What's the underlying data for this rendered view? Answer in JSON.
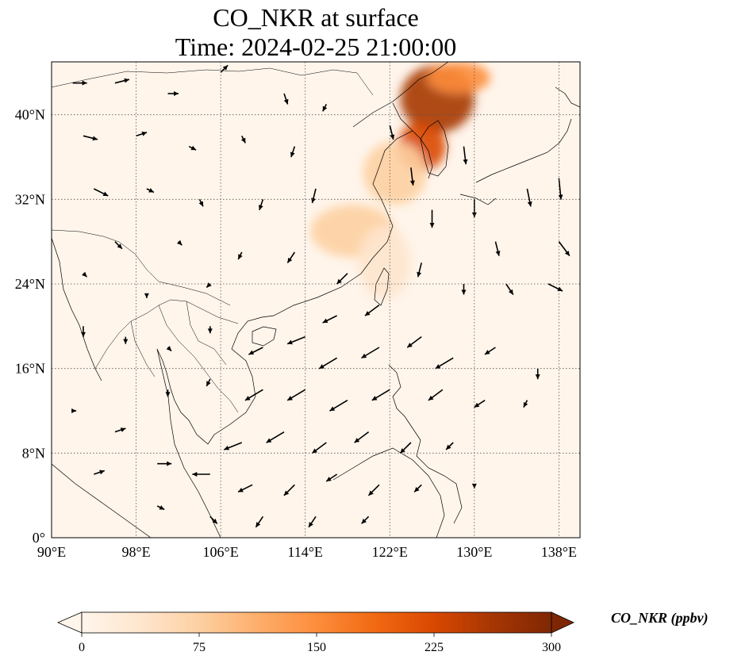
{
  "title_line1": "CO_NKR at surface",
  "title_line2": "Time: 2024-02-25 21:00:00",
  "map": {
    "lon_range": [
      90,
      140
    ],
    "lat_range": [
      0,
      45
    ],
    "lon_ticks": [
      {
        "value": 90,
        "label": "90°E"
      },
      {
        "value": 98,
        "label": "98°E"
      },
      {
        "value": 106,
        "label": "106°E"
      },
      {
        "value": 114,
        "label": "114°E"
      },
      {
        "value": 122,
        "label": "122°E"
      },
      {
        "value": 130,
        "label": "130°E"
      },
      {
        "value": 138,
        "label": "138°E"
      }
    ],
    "lat_ticks": [
      {
        "value": 0,
        "label": "0°"
      },
      {
        "value": 8,
        "label": "8°N"
      },
      {
        "value": 16,
        "label": "16°N"
      },
      {
        "value": 24,
        "label": "24°N"
      },
      {
        "value": 32,
        "label": "32°N"
      },
      {
        "value": 40,
        "label": "40°N"
      }
    ],
    "gridlines": "dotted",
    "background_color": "#fff5eb",
    "plumes": [
      {
        "name": "korea-north-china-plume",
        "lon": 126.5,
        "lat": 41.5,
        "rlon": 3.5,
        "rlat": 3.2,
        "value": 280
      },
      {
        "name": "korea-plume",
        "lon": 125.0,
        "lat": 37.0,
        "rlon": 2.3,
        "rlat": 2.3,
        "value": 230
      },
      {
        "name": "northeast-plume",
        "lon": 128.5,
        "lat": 43.5,
        "rlon": 3.0,
        "rlat": 1.5,
        "value": 160
      },
      {
        "name": "yellow-sea-plume",
        "lon": 122.5,
        "lat": 34.5,
        "rlon": 3.0,
        "rlat": 3.0,
        "value": 70
      },
      {
        "name": "east-china-plume",
        "lon": 118.5,
        "lat": 29.0,
        "rlon": 4.0,
        "rlat": 2.5,
        "value": 60
      },
      {
        "name": "taiwan-plume",
        "lon": 121.5,
        "lat": 26.0,
        "rlon": 2.5,
        "rlat": 3.5,
        "value": 40
      }
    ],
    "wind_vectors": [
      {
        "lon": 92,
        "lat": 43,
        "u": 2,
        "v": 0
      },
      {
        "lon": 96,
        "lat": 43,
        "u": 2,
        "v": 0.5
      },
      {
        "lon": 101,
        "lat": 42,
        "u": 1.5,
        "v": 0
      },
      {
        "lon": 106,
        "lat": 44,
        "u": 1,
        "v": 1
      },
      {
        "lon": 112,
        "lat": 42,
        "u": 0.5,
        "v": -1.5
      },
      {
        "lon": 116,
        "lat": 41,
        "u": -0.5,
        "v": -1
      },
      {
        "lon": 93,
        "lat": 38,
        "u": 2,
        "v": -0.5
      },
      {
        "lon": 98,
        "lat": 38,
        "u": 1.5,
        "v": 0.5
      },
      {
        "lon": 103,
        "lat": 37,
        "u": 1,
        "v": -0.5
      },
      {
        "lon": 108,
        "lat": 38,
        "u": 0.5,
        "v": -1
      },
      {
        "lon": 113,
        "lat": 37,
        "u": -0.5,
        "v": -1.5
      },
      {
        "lon": 94,
        "lat": 33,
        "u": 2,
        "v": -1
      },
      {
        "lon": 99,
        "lat": 33,
        "u": 1,
        "v": -0.5
      },
      {
        "lon": 104,
        "lat": 32,
        "u": 0.5,
        "v": -1
      },
      {
        "lon": 110,
        "lat": 32,
        "u": -0.5,
        "v": -1.5
      },
      {
        "lon": 115,
        "lat": 33,
        "u": -0.5,
        "v": -2
      },
      {
        "lon": 96,
        "lat": 28,
        "u": 1,
        "v": -1
      },
      {
        "lon": 102,
        "lat": 28,
        "u": 0.5,
        "v": -0.5
      },
      {
        "lon": 108,
        "lat": 27,
        "u": -0.5,
        "v": -1
      },
      {
        "lon": 113,
        "lat": 27,
        "u": -1,
        "v": -1.5
      },
      {
        "lon": 118,
        "lat": 25,
        "u": -1.5,
        "v": -1.5
      },
      {
        "lon": 122,
        "lat": 39,
        "u": 0.5,
        "v": -2
      },
      {
        "lon": 124,
        "lat": 35,
        "u": 0.3,
        "v": -2.5
      },
      {
        "lon": 126,
        "lat": 31,
        "u": 0,
        "v": -2.5
      },
      {
        "lon": 129,
        "lat": 37,
        "u": 0.3,
        "v": -2.5
      },
      {
        "lon": 130,
        "lat": 32,
        "u": 0,
        "v": -2.5
      },
      {
        "lon": 132,
        "lat": 28,
        "u": 0.5,
        "v": -2
      },
      {
        "lon": 135,
        "lat": 33,
        "u": 0.5,
        "v": -2.5
      },
      {
        "lon": 138,
        "lat": 34,
        "u": 0.3,
        "v": -3
      },
      {
        "lon": 138,
        "lat": 28,
        "u": 1.5,
        "v": -2
      },
      {
        "lon": 137,
        "lat": 24,
        "u": 2,
        "v": -1
      },
      {
        "lon": 133,
        "lat": 24,
        "u": 1,
        "v": -1.5
      },
      {
        "lon": 129,
        "lat": 24,
        "u": 0,
        "v": -1.5
      },
      {
        "lon": 125,
        "lat": 26,
        "u": -0.5,
        "v": -2
      },
      {
        "lon": 121,
        "lat": 22,
        "u": -2,
        "v": -1.5
      },
      {
        "lon": 117,
        "lat": 21,
        "u": -2,
        "v": -1
      },
      {
        "lon": 114,
        "lat": 19,
        "u": -2.5,
        "v": -1
      },
      {
        "lon": 110,
        "lat": 18,
        "u": -2,
        "v": -1
      },
      {
        "lon": 117,
        "lat": 17,
        "u": -2.5,
        "v": -1.5
      },
      {
        "lon": 121,
        "lat": 18,
        "u": -2.5,
        "v": -1.5
      },
      {
        "lon": 125,
        "lat": 19,
        "u": -2,
        "v": -1.5
      },
      {
        "lon": 128,
        "lat": 17,
        "u": -2.5,
        "v": -1.5
      },
      {
        "lon": 132,
        "lat": 18,
        "u": -1.5,
        "v": -1
      },
      {
        "lon": 136,
        "lat": 16,
        "u": 0,
        "v": -1.5
      },
      {
        "lon": 110,
        "lat": 14,
        "u": -2.5,
        "v": -1.5
      },
      {
        "lon": 114,
        "lat": 14,
        "u": -2.5,
        "v": -1.5
      },
      {
        "lon": 118,
        "lat": 13,
        "u": -2.5,
        "v": -1.5
      },
      {
        "lon": 122,
        "lat": 14,
        "u": -2.5,
        "v": -1.5
      },
      {
        "lon": 127,
        "lat": 14,
        "u": -2,
        "v": -1.5
      },
      {
        "lon": 131,
        "lat": 13,
        "u": -1.5,
        "v": -1
      },
      {
        "lon": 135,
        "lat": 13,
        "u": -0.5,
        "v": -1
      },
      {
        "lon": 108,
        "lat": 9,
        "u": -2.5,
        "v": -1
      },
      {
        "lon": 112,
        "lat": 10,
        "u": -2.5,
        "v": -1.5
      },
      {
        "lon": 116,
        "lat": 9,
        "u": -2,
        "v": -1.5
      },
      {
        "lon": 120,
        "lat": 10,
        "u": -2,
        "v": -1.5
      },
      {
        "lon": 124,
        "lat": 9,
        "u": -1.5,
        "v": -1.5
      },
      {
        "lon": 128,
        "lat": 9,
        "u": -1,
        "v": -1
      },
      {
        "lon": 105,
        "lat": 6,
        "u": -2.5,
        "v": 0
      },
      {
        "lon": 109,
        "lat": 5,
        "u": -2,
        "v": -1
      },
      {
        "lon": 113,
        "lat": 5,
        "u": -1.5,
        "v": -1.5
      },
      {
        "lon": 117,
        "lat": 6,
        "u": -1.5,
        "v": -1
      },
      {
        "lon": 121,
        "lat": 5,
        "u": -1.5,
        "v": -1.5
      },
      {
        "lon": 125,
        "lat": 5,
        "u": -1,
        "v": -1
      },
      {
        "lon": 130,
        "lat": 5,
        "u": 0,
        "v": -0.5
      },
      {
        "lon": 92,
        "lat": 12,
        "u": 0.5,
        "v": 0
      },
      {
        "lon": 96,
        "lat": 10,
        "u": 1.5,
        "v": 0.5
      },
      {
        "lon": 100,
        "lat": 7,
        "u": 2,
        "v": 0
      },
      {
        "lon": 94,
        "lat": 6,
        "u": 1.5,
        "v": 0.5
      },
      {
        "lon": 100,
        "lat": 3,
        "u": 1,
        "v": -0.5
      },
      {
        "lon": 105,
        "lat": 2,
        "u": 1,
        "v": -1
      },
      {
        "lon": 110,
        "lat": 2,
        "u": -1,
        "v": -1.5
      },
      {
        "lon": 115,
        "lat": 2,
        "u": -1,
        "v": -1.5
      },
      {
        "lon": 120,
        "lat": 2,
        "u": -1,
        "v": -1
      },
      {
        "lon": 93,
        "lat": 20,
        "u": 0,
        "v": -1.5
      },
      {
        "lon": 97,
        "lat": 19,
        "u": 0,
        "v": -1
      },
      {
        "lon": 101,
        "lat": 18,
        "u": 0.5,
        "v": -0.5
      },
      {
        "lon": 105,
        "lat": 20,
        "u": 0,
        "v": -1
      },
      {
        "lon": 101,
        "lat": 14,
        "u": 0,
        "v": -1
      },
      {
        "lon": 105,
        "lat": 15,
        "u": -0.5,
        "v": -1
      },
      {
        "lon": 93,
        "lat": 25,
        "u": 0.5,
        "v": -0.5
      },
      {
        "lon": 99,
        "lat": 23,
        "u": 0,
        "v": -0.5
      },
      {
        "lon": 105,
        "lat": 24,
        "u": -0.5,
        "v": -0.5
      }
    ]
  },
  "colorbar": {
    "title": "CO_NKR (ppbv)",
    "min": 0,
    "max": 300,
    "ticks": [
      {
        "value": 0,
        "label": "0"
      },
      {
        "value": 75,
        "label": "75"
      },
      {
        "value": 150,
        "label": "150"
      },
      {
        "value": 225,
        "label": "225"
      },
      {
        "value": 300,
        "label": "300"
      }
    ],
    "colors": [
      "#fff5eb",
      "#fee6ce",
      "#fdd0a2",
      "#fdae6b",
      "#fd8d3c",
      "#f16913",
      "#d94801",
      "#a63603",
      "#7f2704"
    ],
    "extend": "both"
  }
}
